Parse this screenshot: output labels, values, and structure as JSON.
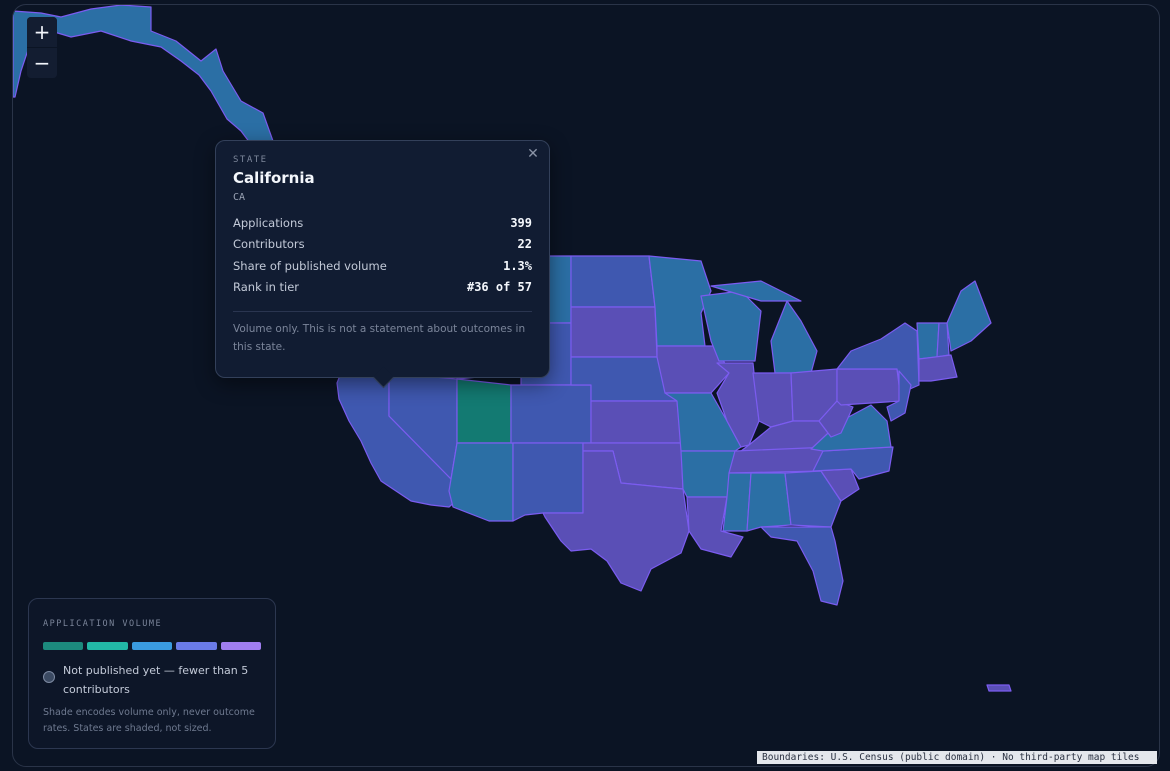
{
  "map": {
    "zoom_in_label": "+",
    "zoom_out_label": "−",
    "attribution": "Boundaries: U.S. Census (public domain) · No third-party map tiles",
    "colors": {
      "background": "#0b1424",
      "border": "#7b5cf0",
      "tier1": "#137a72",
      "tier2": "#2b6fa5",
      "tier3": "#3f58b0",
      "tier4": "#5a4fb6",
      "tier5": "#6e4fb8"
    }
  },
  "popup": {
    "kicker": "STATE",
    "name": "California",
    "abbr": "CA",
    "close_icon": "close-icon",
    "rows": [
      {
        "label": "Applications",
        "value": "399"
      },
      {
        "label": "Contributors",
        "value": "22"
      },
      {
        "label": "Share of published volume",
        "value": "1.3%"
      },
      {
        "label": "Rank in tier",
        "value": "#36 of 57"
      }
    ],
    "note": "Volume only. This is not a statement about outcomes in this state."
  },
  "legend": {
    "title": "APPLICATION VOLUME",
    "swatches": [
      "#1c8a7d",
      "#22b8a6",
      "#3a9be0",
      "#6a7be8",
      "#a07ef0"
    ],
    "not_published": "Not published yet — fewer than 5 contributors",
    "note": "Shade encodes volume only, never outcome rates. States are shaded, not sized."
  }
}
